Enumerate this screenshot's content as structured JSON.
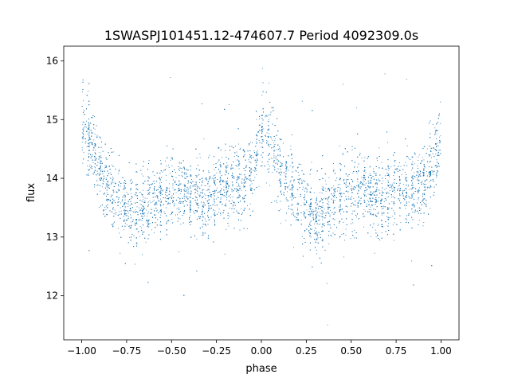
{
  "chart_data": {
    "type": "scatter",
    "title": "1SWASPJ101451.12-474607.7 Period 4092309.0s",
    "xlabel": "phase",
    "ylabel": "flux",
    "xlim": [
      -1.1,
      1.1
    ],
    "ylim": [
      11.25,
      16.25
    ],
    "xticks": [
      -1.0,
      -0.75,
      -0.5,
      -0.25,
      0.0,
      0.25,
      0.5,
      0.75,
      1.0
    ],
    "xtick_labels": [
      "−1.00",
      "−0.75",
      "−0.50",
      "−0.25",
      "0.00",
      "0.25",
      "0.50",
      "0.75",
      "1.00"
    ],
    "yticks": [
      12,
      13,
      14,
      15,
      16
    ],
    "ytick_labels": [
      "12",
      "13",
      "14",
      "15",
      "16"
    ],
    "grid": false,
    "marker_color": "#1f77b4",
    "series": [
      {
        "name": "",
        "phase_period": 1.0,
        "x_range": [
          -1.0,
          1.0
        ],
        "mean_curve": {
          "phase": [
            0.0,
            0.03,
            0.05,
            0.08,
            0.1,
            0.15,
            0.2,
            0.25,
            0.3,
            0.35,
            0.4,
            0.45,
            0.5,
            0.55,
            0.6,
            0.65,
            0.7,
            0.75,
            0.8,
            0.85,
            0.9,
            0.95,
            1.0
          ],
          "flux": [
            14.85,
            14.8,
            14.6,
            14.3,
            14.1,
            13.85,
            13.65,
            13.45,
            13.35,
            13.45,
            13.65,
            13.7,
            13.75,
            13.8,
            13.7,
            13.6,
            13.65,
            13.8,
            13.8,
            13.85,
            13.95,
            14.2,
            14.85
          ]
        },
        "scatter_sd": 0.32,
        "approx_points": 9000,
        "outlier_range": [
          11.5,
          16.0
        ]
      }
    ]
  }
}
